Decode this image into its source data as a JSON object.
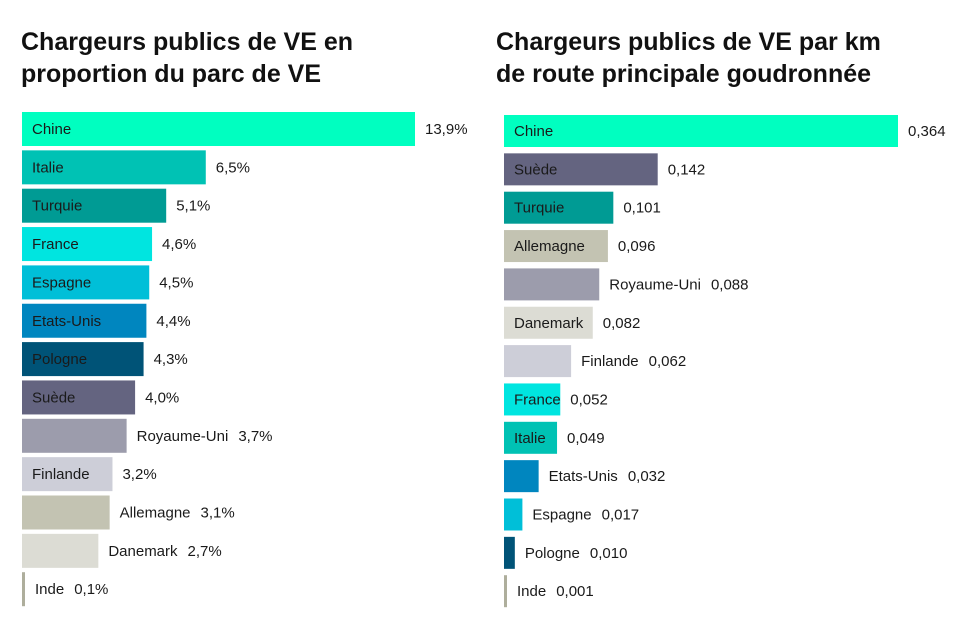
{
  "chart_data": [
    {
      "type": "bar",
      "orientation": "horizontal",
      "title": "Chargeurs publics de VE en\nproportion du parc de VE",
      "categories": [
        "Chine",
        "Italie",
        "Turquie",
        "France",
        "Espagne",
        "Etats-Unis",
        "Pologne",
        "Suède",
        "Royaume-Uni",
        "Finlande",
        "Allemagne",
        "Danemark",
        "Inde"
      ],
      "values": [
        13.9,
        6.5,
        5.1,
        4.6,
        4.5,
        4.4,
        4.3,
        4.0,
        3.7,
        3.2,
        3.1,
        2.7,
        0.1
      ],
      "value_labels": [
        "13,9%",
        "6,5%",
        "5,1%",
        "4,6%",
        "4,5%",
        "4,4%",
        "4,3%",
        "4,0%",
        "3,7%",
        "3,2%",
        "3,1%",
        "2,7%",
        "0,1%"
      ],
      "colors": [
        "#00ffc0",
        "#00c2b4",
        "#009b94",
        "#00e5e0",
        "#00bfd8",
        "#0086bf",
        "#005377",
        "#646480",
        "#9c9cac",
        "#cdced8",
        "#c3c3b2",
        "#dcdcd4",
        "#aeae9c"
      ],
      "label_inside": [
        true,
        true,
        true,
        true,
        true,
        true,
        true,
        true,
        false,
        true,
        false,
        false,
        false
      ],
      "xlim": [
        0,
        13.9
      ]
    },
    {
      "type": "bar",
      "orientation": "horizontal",
      "title": "Chargeurs publics de VE par km\nde route principale goudronnée",
      "categories": [
        "Chine",
        "Suède",
        "Turquie",
        "Allemagne",
        "Royaume-Uni",
        "Danemark",
        "Finlande",
        "France",
        "Italie",
        "Etats-Unis",
        "Espagne",
        "Pologne",
        "Inde"
      ],
      "values": [
        0.364,
        0.142,
        0.101,
        0.096,
        0.088,
        0.082,
        0.062,
        0.052,
        0.049,
        0.032,
        0.017,
        0.01,
        0.001
      ],
      "value_labels": [
        "0,364",
        "0,142",
        "0,101",
        "0,096",
        "0,088",
        "0,082",
        "0,062",
        "0,052",
        "0,049",
        "0,032",
        "0,017",
        "0,010",
        "0,001"
      ],
      "colors": [
        "#00ffc0",
        "#646480",
        "#009b94",
        "#c3c3b2",
        "#9c9cac",
        "#dcdcd4",
        "#cdced8",
        "#00e5e0",
        "#00c2b4",
        "#0086bf",
        "#00bfd8",
        "#005377",
        "#aeae9c"
      ],
      "label_inside": [
        true,
        true,
        true,
        true,
        false,
        true,
        false,
        true,
        true,
        false,
        false,
        false,
        false
      ],
      "xlim": [
        0,
        0.364
      ]
    }
  ]
}
